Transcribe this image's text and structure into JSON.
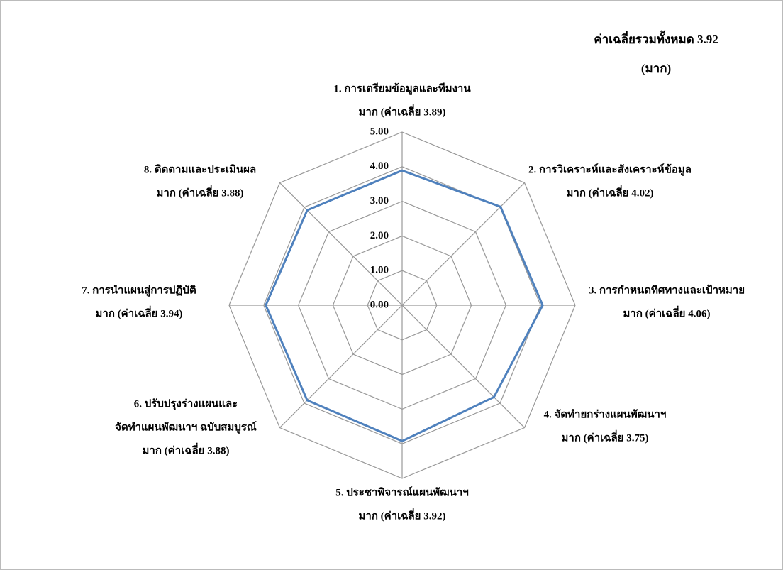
{
  "chart_data": {
    "type": "radar",
    "annotations": [
      "ค่าเฉลี่ยรวมทั้งหมด 3.92",
      "(มาก)"
    ],
    "categories": [
      [
        "1. การเตรียมข้อมูลและทีมงาน"
      ],
      [
        "2. การวิเคราะห์และสังเคราะห์ข้อมูล"
      ],
      [
        "3. การกำหนดทิศทางและเป้าหมาย"
      ],
      [
        "4. จัดทำยกร่างแผนพัฒนาฯ"
      ],
      [
        "5. ประชาพิจารณ์แผนพัฒนาฯ"
      ],
      [
        "6. ปรับปรุงร่างแผนและ",
        "จัดทำแผนพัฒนาฯ ฉบับสมบูรณ์"
      ],
      [
        "7. การนำแผนสู่การปฏิบัติ"
      ],
      [
        "8. ติดตามและประเมินผล"
      ]
    ],
    "values": [
      3.89,
      4.02,
      4.06,
      3.75,
      3.92,
      3.88,
      3.94,
      3.88
    ],
    "value_labels": [
      "มาก (ค่าเฉลี่ย 3.89)",
      "มาก  (ค่าเฉลี่ย 4.02)",
      "มาก  (ค่าเฉลี่ย 4.06)",
      "มาก  (ค่าเฉลี่ย 3.75)",
      "มาก  (ค่าเฉลี่ย 3.92)",
      "มาก  (ค่าเฉลี่ย 3.88)",
      "มาก (ค่าเฉลี่ย 3.94)",
      "มาก  (ค่าเฉลี่ย 3.88)"
    ],
    "color": "#4f81bd",
    "ylim": [
      0,
      5
    ],
    "yticks": [
      {
        "value": 0,
        "label": "0.00"
      },
      {
        "value": 1,
        "label": "1.00"
      },
      {
        "value": 2,
        "label": "2.00"
      },
      {
        "value": 3,
        "label": "3.00"
      },
      {
        "value": 4,
        "label": "4.00"
      },
      {
        "value": 5,
        "label": "5.00"
      }
    ],
    "grid": true
  }
}
